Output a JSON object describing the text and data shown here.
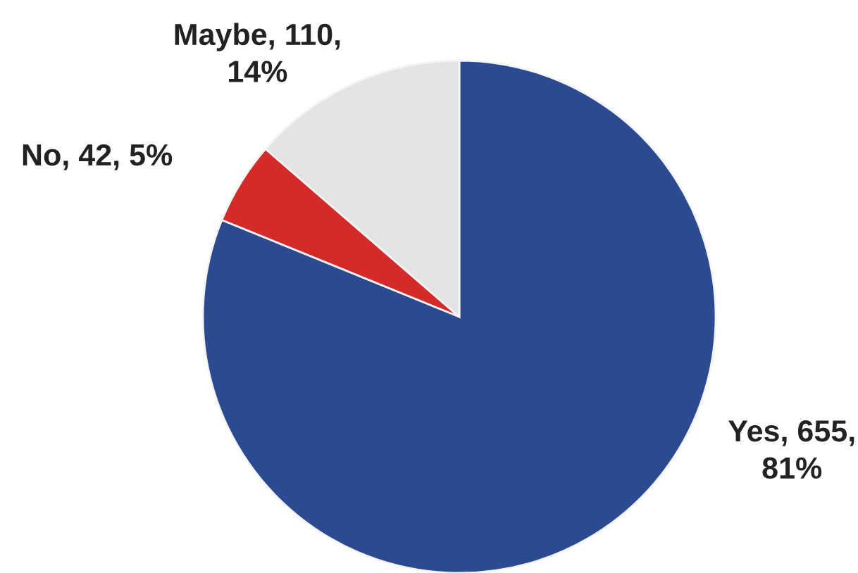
{
  "chart_data": {
    "type": "pie",
    "categories": [
      "Yes",
      "No",
      "Maybe"
    ],
    "values": [
      655,
      42,
      110
    ],
    "value_labels": [
      "655, 81%",
      "42, 5%",
      "110, 14%"
    ],
    "colors": [
      "#2b4a8f",
      "#d42a2a",
      "#e4e4e4"
    ]
  }
}
